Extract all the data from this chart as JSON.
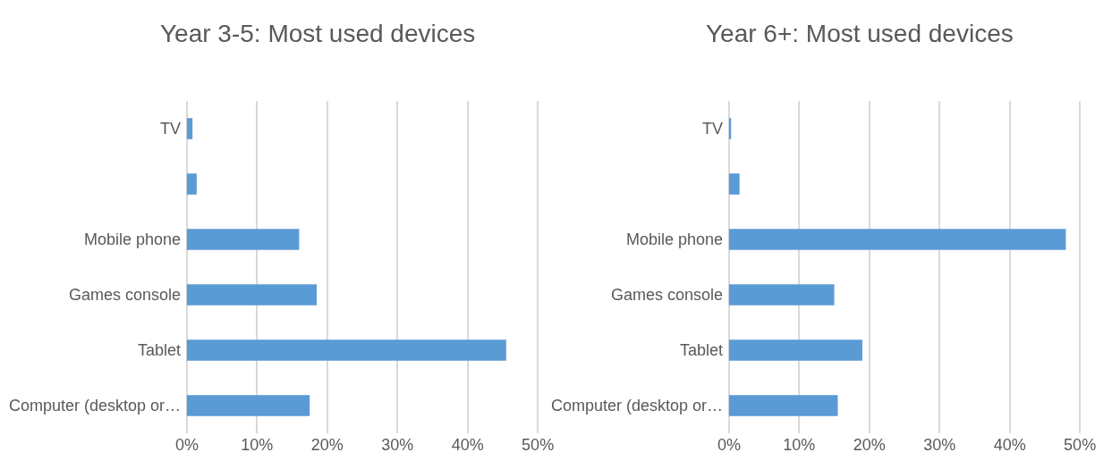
{
  "chart_data": [
    {
      "type": "bar",
      "title": "Year 3-5: Most used devices",
      "orientation": "horizontal",
      "categories": [
        "TV",
        null,
        "Mobile phone",
        "Games console",
        "Tablet",
        "Computer (desktop or…"
      ],
      "values": [
        0.8,
        1.4,
        16,
        18.5,
        45.5,
        17.5
      ],
      "color": "#5b9bd5",
      "xlim": [
        0,
        50
      ],
      "xticks": [
        {
          "value": 0,
          "label": "0%"
        },
        {
          "value": 10,
          "label": "10%"
        },
        {
          "value": 20,
          "label": "20%"
        },
        {
          "value": 30,
          "label": "30%"
        },
        {
          "value": 40,
          "label": "40%"
        },
        {
          "value": 50,
          "label": "50%"
        }
      ],
      "grid": "x"
    },
    {
      "type": "bar",
      "title": "Year 6+: Most used devices",
      "orientation": "horizontal",
      "categories": [
        "TV",
        null,
        "Mobile phone",
        "Games console",
        "Tablet",
        "Computer (desktop or…"
      ],
      "values": [
        0.3,
        1.5,
        48,
        15,
        19,
        15.5
      ],
      "color": "#5b9bd5",
      "xlim": [
        0,
        50
      ],
      "xticks": [
        {
          "value": 0,
          "label": "0%"
        },
        {
          "value": 10,
          "label": "10%"
        },
        {
          "value": 20,
          "label": "20%"
        },
        {
          "value": 30,
          "label": "30%"
        },
        {
          "value": 40,
          "label": "40%"
        },
        {
          "value": 50,
          "label": "50%"
        }
      ],
      "grid": "x"
    }
  ]
}
